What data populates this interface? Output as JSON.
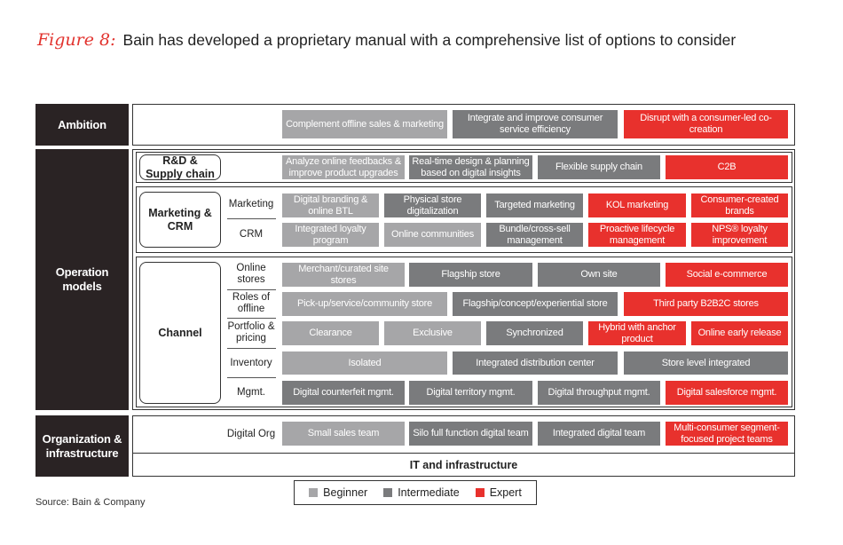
{
  "title": {
    "figure": "Figure 8:",
    "text": "Bain has developed a proprietary manual with a comprehensive list of options to consider"
  },
  "categories": {
    "ambition": "Ambition",
    "operation": "Operation models",
    "org": "Organization & infrastructure"
  },
  "sublabels": {
    "rnd": "R&D & Supply chain",
    "marketing": "Marketing & CRM",
    "channel": "Channel"
  },
  "row_labels": {
    "marketing": "Marketing",
    "crm": "CRM",
    "online_stores": "Online stores",
    "roles_offline": "Roles of offline",
    "portfolio": "Portfolio & pricing",
    "inventory": "Inventory",
    "mgmt": "Mgmt.",
    "digital_org": "Digital Org"
  },
  "cells": {
    "ambition": [
      "Complement offline sales & marketing",
      "Integrate and improve consumer service efficiency",
      "Disrupt with a consumer-led co-creation"
    ],
    "rnd": [
      "Analyze online feedbacks & improve product upgrades",
      "Real-time design & planning based on digital insights",
      "Flexible supply chain",
      "C2B"
    ],
    "marketing": [
      "Digital branding & online BTL",
      "Physical store digitalization",
      "Targeted marketing",
      "KOL marketing",
      "Consumer-created brands"
    ],
    "crm": [
      "Integrated loyalty program",
      "Online communities",
      "Bundle/cross-sell management",
      "Proactive lifecycle management",
      "NPS® loyalty improvement"
    ],
    "online_stores": [
      "Merchant/curated site stores",
      "Flagship store",
      "Own site",
      "Social e-commerce"
    ],
    "roles_offline": [
      "Pick-up/service/community store",
      "Flagship/concept/experiential store",
      "Third party B2B2C stores"
    ],
    "portfolio": [
      "Clearance",
      "Exclusive",
      "Synchronized",
      "Hybrid with anchor product",
      "Online early release"
    ],
    "inventory": [
      "Isolated",
      "Integrated distribution center",
      "Store level integrated"
    ],
    "mgmt": [
      "Digital counterfeit mgmt.",
      "Digital territory mgmt.",
      "Digital throughput mgmt.",
      "Digital salesforce mgmt."
    ],
    "digital_org": [
      "Small sales team",
      "Silo full function digital team",
      "Integrated digital team",
      "Multi-consumer segment-focused project teams"
    ]
  },
  "it_bar": "IT and infrastructure",
  "legend": [
    {
      "label": "Beginner",
      "color": "#a6a6a8"
    },
    {
      "label": "Intermediate",
      "color": "#7a7b7d"
    },
    {
      "label": "Expert",
      "color": "#e8312d"
    }
  ],
  "source": "Source: Bain & Company"
}
